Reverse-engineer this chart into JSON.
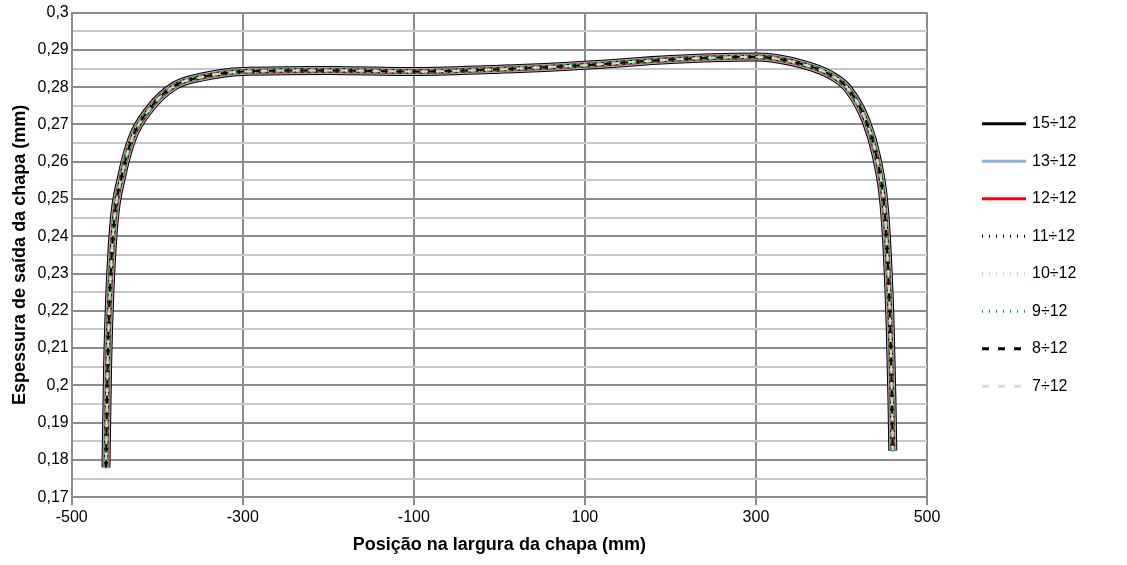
{
  "chart_data": {
    "type": "line",
    "xlabel": "Posição na largura da chapa (mm)",
    "ylabel": "Espessura de saída da chapa (mm)",
    "x": [
      -460,
      -458,
      -455.4,
      -450.4,
      -442,
      -429.6,
      -408.8,
      -379.6,
      -346,
      -300,
      -200,
      -100,
      0,
      100,
      200,
      250,
      300,
      353.75,
      387,
      407.9,
      428.75,
      441,
      449.6,
      453.75,
      457,
      459,
      460
    ],
    "series": [
      {
        "name": "15÷12",
        "color": "#000000",
        "line_style": "solid",
        "values": [
          0.178,
          0.206,
          0.225,
          0.2441,
          0.2556,
          0.2661,
          0.2742,
          0.2804,
          0.2828,
          0.2842,
          0.2845,
          0.2842,
          0.2848,
          0.2859,
          0.2874,
          0.2879,
          0.2881,
          0.2862,
          0.2833,
          0.2795,
          0.2709,
          0.2613,
          0.2489,
          0.2346,
          0.2155,
          0.1964,
          0.1825
        ]
      },
      {
        "name": "13÷12",
        "color": "#95b3d7",
        "line_style": "solid",
        "values": [
          0.178,
          0.206,
          0.225,
          0.2441,
          0.2556,
          0.2661,
          0.2742,
          0.2804,
          0.2828,
          0.2842,
          0.2845,
          0.2842,
          0.2848,
          0.2859,
          0.2874,
          0.2879,
          0.2881,
          0.2862,
          0.2833,
          0.2795,
          0.2709,
          0.2613,
          0.2489,
          0.2346,
          0.2155,
          0.1964,
          0.1825
        ]
      },
      {
        "name": "12÷12",
        "color": "#ff0000",
        "line_style": "solid",
        "values": [
          0.178,
          0.206,
          0.225,
          0.2441,
          0.2556,
          0.2661,
          0.2742,
          0.2804,
          0.2828,
          0.2842,
          0.2845,
          0.2842,
          0.2848,
          0.2859,
          0.2874,
          0.2879,
          0.2881,
          0.2862,
          0.2833,
          0.2795,
          0.2709,
          0.2613,
          0.2489,
          0.2346,
          0.2155,
          0.1964,
          0.1825
        ]
      },
      {
        "name": "11÷12",
        "color": "#000000",
        "line_style": "dotted",
        "values": [
          0.178,
          0.206,
          0.225,
          0.2441,
          0.2556,
          0.2661,
          0.2742,
          0.2804,
          0.2828,
          0.2842,
          0.2845,
          0.2842,
          0.2848,
          0.2859,
          0.2874,
          0.2879,
          0.2881,
          0.2862,
          0.2833,
          0.2795,
          0.2709,
          0.2613,
          0.2489,
          0.2346,
          0.2155,
          0.1964,
          0.1825
        ]
      },
      {
        "name": "10÷12",
        "color": "#fac090",
        "line_style": "dotted",
        "values": [
          0.178,
          0.206,
          0.225,
          0.2441,
          0.2556,
          0.2661,
          0.2742,
          0.2804,
          0.2828,
          0.2842,
          0.2845,
          0.2842,
          0.2848,
          0.2859,
          0.2874,
          0.2879,
          0.2881,
          0.2862,
          0.2833,
          0.2795,
          0.2709,
          0.2613,
          0.2489,
          0.2346,
          0.2155,
          0.1964,
          0.1825
        ]
      },
      {
        "name": "9÷12",
        "color": "#00b050",
        "line_style": "dotted",
        "values": [
          0.178,
          0.206,
          0.225,
          0.2441,
          0.2556,
          0.2661,
          0.2742,
          0.2804,
          0.2828,
          0.2842,
          0.2845,
          0.2842,
          0.2848,
          0.2859,
          0.2874,
          0.2879,
          0.2881,
          0.2862,
          0.2833,
          0.2795,
          0.2709,
          0.2613,
          0.2489,
          0.2346,
          0.2155,
          0.1964,
          0.1825
        ]
      },
      {
        "name": "8÷12",
        "color": "#000000",
        "line_style": "dashed",
        "values": [
          0.178,
          0.206,
          0.225,
          0.2441,
          0.2556,
          0.2661,
          0.2742,
          0.2804,
          0.2828,
          0.2842,
          0.2845,
          0.2842,
          0.2848,
          0.2859,
          0.2874,
          0.2879,
          0.2881,
          0.2862,
          0.2833,
          0.2795,
          0.2709,
          0.2613,
          0.2489,
          0.2346,
          0.2155,
          0.1964,
          0.1825
        ]
      },
      {
        "name": "7÷12",
        "color": "#d9d9d9",
        "line_style": "dashed",
        "values": [
          0.178,
          0.206,
          0.225,
          0.2441,
          0.2556,
          0.2661,
          0.2742,
          0.2804,
          0.2828,
          0.2842,
          0.2845,
          0.2842,
          0.2848,
          0.2859,
          0.2874,
          0.2879,
          0.2881,
          0.2862,
          0.2833,
          0.2795,
          0.2709,
          0.2613,
          0.2489,
          0.2346,
          0.2155,
          0.1964,
          0.1825
        ]
      }
    ],
    "xlim": [
      -500,
      500
    ],
    "xticks": [
      -500,
      -300,
      -100,
      100,
      300,
      500
    ],
    "ylim": [
      0.17,
      0.3
    ],
    "yticks": [
      {
        "value": 0.17,
        "label": "0,17"
      },
      {
        "value": 0.175,
        "label": null
      },
      {
        "value": 0.18,
        "label": "0,18"
      },
      {
        "value": 0.185,
        "label": null
      },
      {
        "value": 0.19,
        "label": "0,19"
      },
      {
        "value": 0.195,
        "label": null
      },
      {
        "value": 0.2,
        "label": "0,2"
      },
      {
        "value": 0.205,
        "label": null
      },
      {
        "value": 0.21,
        "label": "0,21"
      },
      {
        "value": 0.215,
        "label": null
      },
      {
        "value": 0.22,
        "label": "0,22"
      },
      {
        "value": 0.225,
        "label": null
      },
      {
        "value": 0.23,
        "label": "0,23"
      },
      {
        "value": 0.235,
        "label": null
      },
      {
        "value": 0.24,
        "label": "0,24"
      },
      {
        "value": 0.245,
        "label": null
      },
      {
        "value": 0.25,
        "label": "0,25"
      },
      {
        "value": 0.255,
        "label": null
      },
      {
        "value": 0.26,
        "label": "0,26"
      },
      {
        "value": 0.265,
        "label": null
      },
      {
        "value": 0.27,
        "label": "0,27"
      },
      {
        "value": 0.275,
        "label": null
      },
      {
        "value": 0.28,
        "label": "0,28"
      },
      {
        "value": 0.285,
        "label": null
      },
      {
        "value": 0.29,
        "label": "0,29"
      },
      {
        "value": 0.295,
        "label": null
      },
      {
        "value": 0.3,
        "label": "0,3"
      }
    ],
    "grid": true,
    "legend": "right",
    "marker": "none"
  }
}
